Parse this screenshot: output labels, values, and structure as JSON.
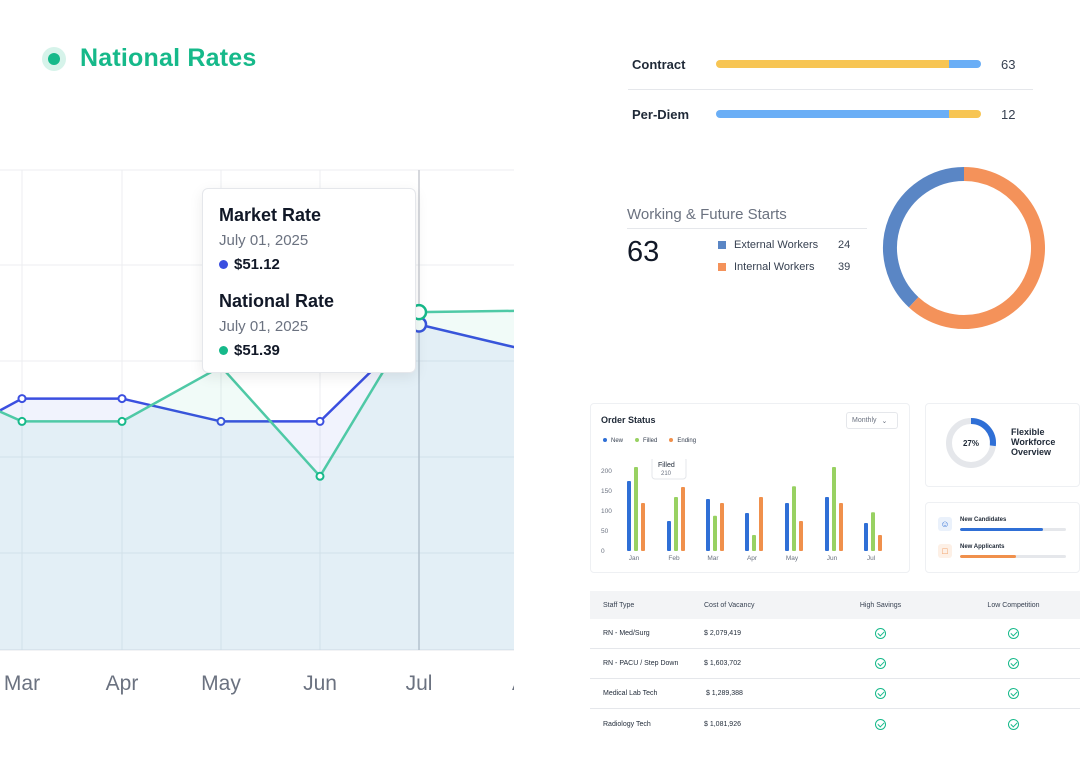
{
  "national_rates": {
    "title": "National Rates",
    "tooltip": {
      "market": {
        "title": "Market Rate",
        "date": "July 01, 2025",
        "value": "$51.12"
      },
      "national": {
        "title": "National Rate",
        "date": "July 01, 2025",
        "value": "$51.39"
      }
    },
    "colors": {
      "market": "#3b4fe0",
      "national": "#16b98a"
    }
  },
  "chart_data": [
    {
      "type": "line",
      "title": "",
      "categories": [
        "Mar",
        "Apr",
        "May",
        "Jun",
        "Jul",
        "A"
      ],
      "series": [
        {
          "name": "Market Rate",
          "values": [
            49.5,
            49.5,
            49.0,
            49.0,
            51.12,
            50.6
          ]
        },
        {
          "name": "National Rate",
          "values": [
            49.0,
            49.0,
            50.2,
            47.8,
            51.39,
            51.42
          ]
        }
      ],
      "ylim": [
        44.0,
        54.5
      ],
      "grid": true,
      "highlight_category": "Jul"
    },
    {
      "type": "bar",
      "title": "Order Status",
      "categories": [
        "Jan",
        "Feb",
        "Mar",
        "Apr",
        "May",
        "Jun",
        "Jul"
      ],
      "series": [
        {
          "name": "New",
          "values": [
            175,
            75,
            130,
            95,
            120,
            135,
            70
          ]
        },
        {
          "name": "Filled",
          "values": [
            210,
            135,
            88,
            40,
            162,
            210,
            97
          ]
        },
        {
          "name": "Ending",
          "values": [
            120,
            160,
            120,
            135,
            75,
            120,
            40
          ]
        }
      ],
      "yticks": [
        "200",
        "150",
        "100",
        "50",
        "0"
      ],
      "ylim": [
        0,
        200
      ],
      "annotation": {
        "label": "Filled",
        "value": "210",
        "category": "Jan"
      }
    },
    {
      "type": "pie",
      "title": "Working & Future Starts",
      "categories": [
        "External Workers",
        "Internal Workers"
      ],
      "values": [
        24,
        39
      ]
    }
  ],
  "workforce_bars": [
    {
      "label": "Contract",
      "value": "63",
      "segments": [
        0.88,
        0.12
      ],
      "colors": [
        "#f7c553",
        "#6aaef6"
      ]
    },
    {
      "label": "Per-Diem",
      "value": "12",
      "segments": [
        0.88,
        0.12
      ],
      "colors": [
        "#6aaef6",
        "#f7c553"
      ]
    }
  ],
  "working_starts": {
    "title": "Working & Future Starts",
    "total": "63",
    "legend": [
      {
        "label": "External Workers",
        "value": "24",
        "color": "#5a86c5"
      },
      {
        "label": "Internal Workers",
        "value": "39",
        "color": "#f4925a"
      }
    ]
  },
  "order_status": {
    "title": "Order Status",
    "select": "Monthly",
    "legend": [
      {
        "label": "New",
        "color": "#2f6fd6"
      },
      {
        "label": "Filled",
        "color": "#98d162"
      },
      {
        "label": "Ending",
        "color": "#f0904c"
      }
    ]
  },
  "flexible_workforce": {
    "title": "Flexible Workforce Overview",
    "percent_label": "27%",
    "percent": 0.27
  },
  "candidates": [
    {
      "label": "New Candidates",
      "fill": 0.78,
      "color": "#2f6fd6",
      "icon": "person-icon"
    },
    {
      "label": "New Applicants",
      "fill": 0.53,
      "color": "#f0904c",
      "icon": "folder-person-icon"
    }
  ],
  "table": {
    "headers": [
      "Staff Type",
      "Cost of Vacancy",
      "High Savings",
      "Low Competition"
    ],
    "rows": [
      {
        "staff": "RN - Med/Surg",
        "cost": "$ 2,079,419"
      },
      {
        "staff": "RN - PACU / Step Down",
        "cost": "$ 1,603,702"
      },
      {
        "staff": "Medical Lab Tech",
        "cost": " $ 1,289,388"
      },
      {
        "staff": "Radiology Tech",
        "cost": "$ 1,081,926"
      }
    ]
  }
}
